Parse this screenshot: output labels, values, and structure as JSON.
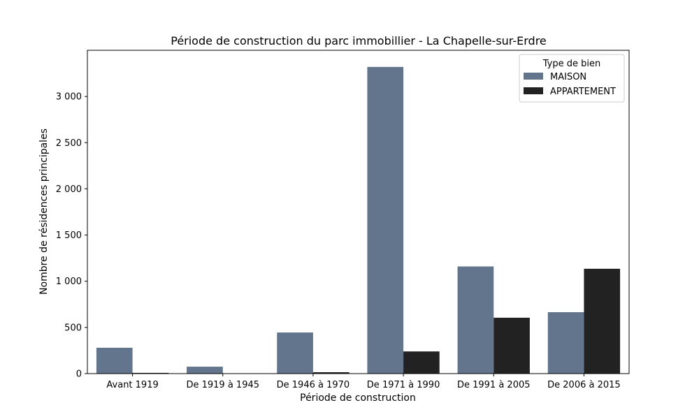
{
  "chart_data": {
    "type": "bar",
    "title": "Période de construction du parc immobillier - La Chapelle-sur-Erdre",
    "xlabel": "Période de construction",
    "ylabel": "Nombre de résidences principales",
    "categories": [
      "Avant 1919",
      "De 1919 à 1945",
      "De 1946 à 1970",
      "De 1971 à 1990",
      "De 1991 à 2005",
      "De 2006 à 2015"
    ],
    "series": [
      {
        "name": "MAISON",
        "color": "#62758c",
        "values": [
          280,
          75,
          445,
          3320,
          1160,
          665
        ]
      },
      {
        "name": "APPARTEMENT",
        "color": "#222222",
        "values": [
          8,
          0,
          15,
          240,
          605,
          1135
        ]
      }
    ],
    "ylim": [
      0,
      3500
    ],
    "yticks": [
      0,
      500,
      1000,
      1500,
      2000,
      2500,
      3000
    ],
    "ytick_labels": [
      "0",
      "500",
      "1 000",
      "1 500",
      "2 000",
      "2 500",
      "3 000"
    ],
    "legend": {
      "title": "Type de bien",
      "placement": "top-right"
    },
    "grid": false
  }
}
